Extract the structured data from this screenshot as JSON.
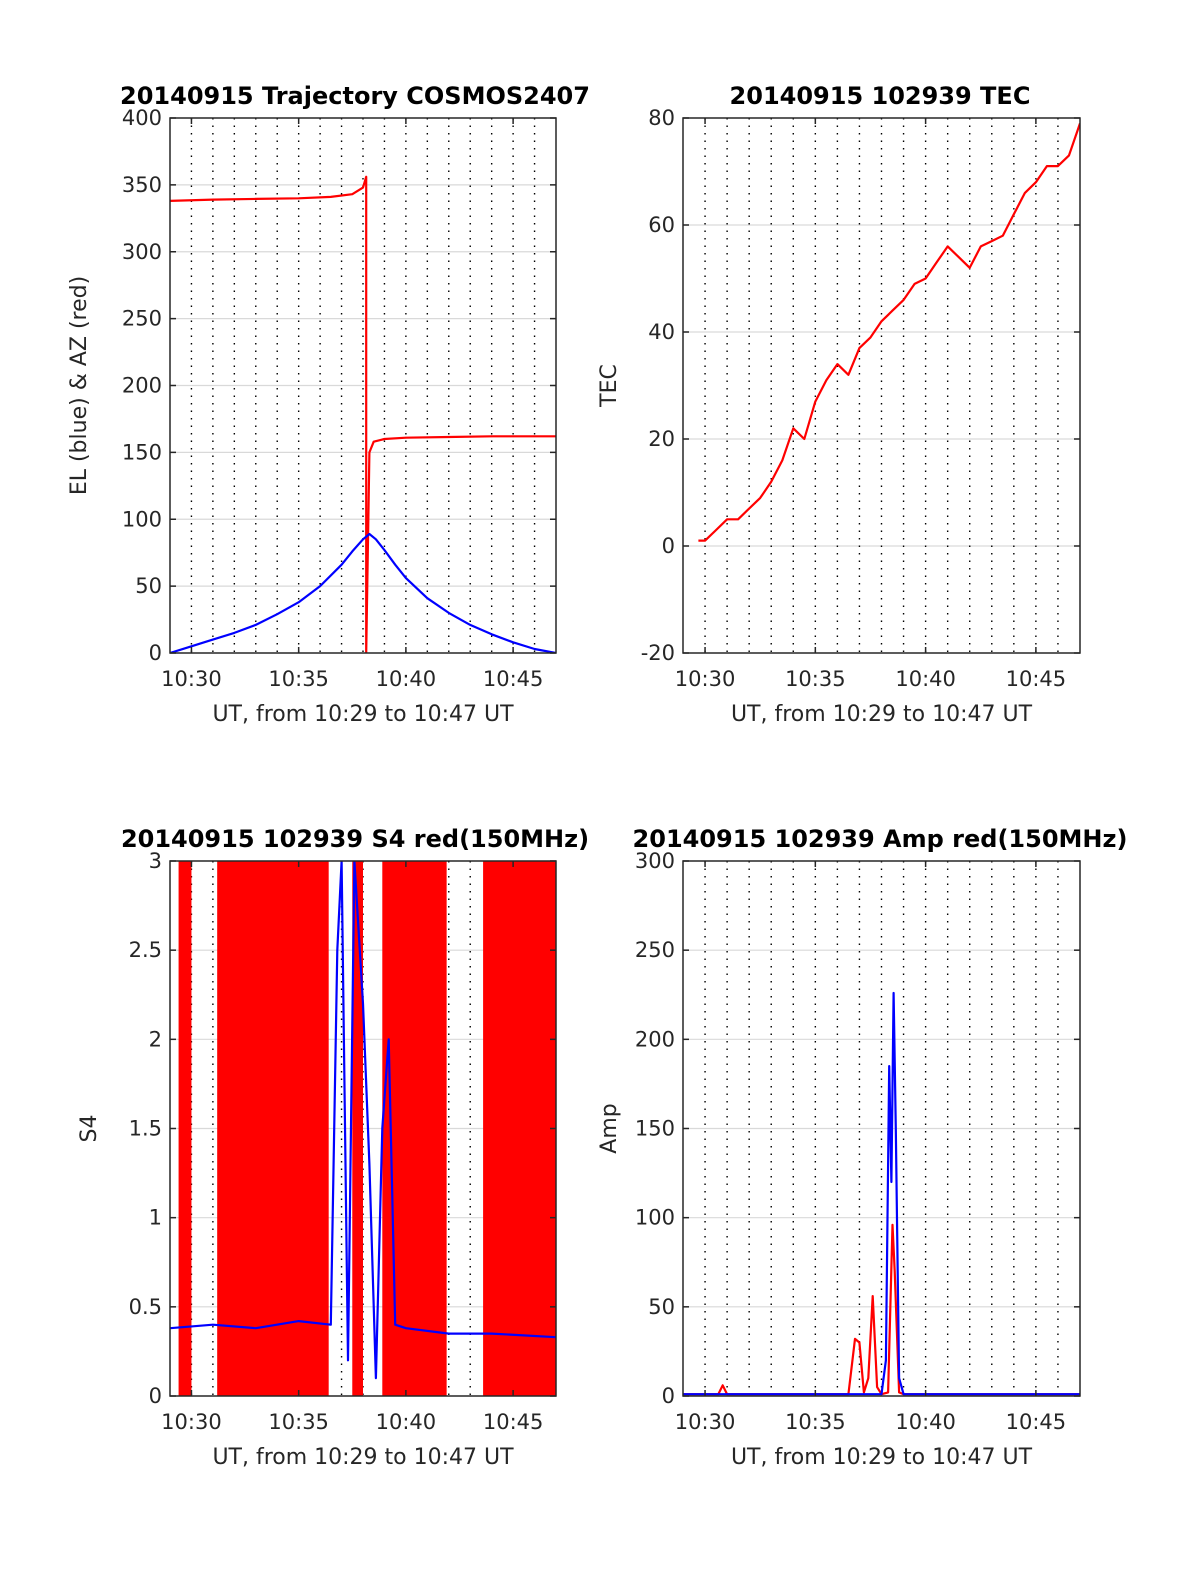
{
  "figure": {
    "colors": {
      "red": "#ff0000",
      "blue": "#0000ff",
      "axes": "#262626",
      "grid": "#d9d9d9",
      "vgrid": "#000000"
    }
  },
  "chart_data": [
    {
      "type": "line",
      "title": "20140915 Trajectory COSMOS2407",
      "xlabel": "UT, from 10:29 to 10:47 UT",
      "ylabel": "EL (blue) & AZ (red)",
      "xlim": [
        "10:29",
        "10:47"
      ],
      "ylim": [
        0,
        400
      ],
      "xticks": [
        "10:30",
        "10:35",
        "10:40",
        "10:45"
      ],
      "yticks": [
        "0",
        "50",
        "100",
        "150",
        "200",
        "250",
        "300",
        "350",
        "400"
      ],
      "grid": "on",
      "series": [
        {
          "color": "red",
          "x": [
            "10:29.0",
            "10:31.0",
            "10:33.0",
            "10:35.0",
            "10:36.5",
            "10:37.5",
            "10:38.0",
            "10:38.15",
            "10:38.15",
            "10:38.3",
            "10:38.5",
            "10:39.0",
            "10:40.0",
            "10:42.0",
            "10:44.0",
            "10:47.0"
          ],
          "values": [
            338,
            339,
            339.5,
            340,
            341,
            343,
            348,
            356,
            0,
            150,
            158,
            160,
            161,
            161.5,
            162,
            162
          ]
        },
        {
          "color": "blue",
          "x": [
            "10:29.0",
            "10:30.0",
            "10:31.0",
            "10:32.0",
            "10:33.0",
            "10:34.0",
            "10:35.0",
            "10:36.0",
            "10:37.0",
            "10:37.5",
            "10:38.0",
            "10:38.3",
            "10:38.6",
            "10:39.0",
            "10:39.5",
            "10:40.0",
            "10:41.0",
            "10:42.0",
            "10:43.0",
            "10:44.0",
            "10:45.0",
            "10:46.0",
            "10:47.0"
          ],
          "values": [
            0,
            5,
            10,
            15,
            21,
            29,
            38,
            50,
            66,
            76,
            85,
            89,
            85,
            77,
            66,
            56,
            41,
            30,
            21,
            14,
            8,
            3,
            0
          ]
        }
      ]
    },
    {
      "type": "line",
      "title": "20140915 102939 TEC",
      "xlabel": "UT, from 10:29 to 10:47 UT",
      "ylabel": "TEC",
      "xlim": [
        "10:29",
        "10:47"
      ],
      "ylim": [
        -20,
        80
      ],
      "xticks": [
        "10:30",
        "10:35",
        "10:40",
        "10:45"
      ],
      "yticks": [
        "-20",
        "0",
        "20",
        "40",
        "60",
        "80"
      ],
      "grid": "on",
      "series": [
        {
          "color": "red",
          "x": [
            "10:29.7",
            "10:30.0",
            "10:30.5",
            "10:31.0",
            "10:31.5",
            "10:32.0",
            "10:32.5",
            "10:33.0",
            "10:33.5",
            "10:34.0",
            "10:34.5",
            "10:35.0",
            "10:35.5",
            "10:36.0",
            "10:36.5",
            "10:37.0",
            "10:37.5",
            "10:38.0",
            "10:38.5",
            "10:39.0",
            "10:39.5",
            "10:40.0",
            "10:40.5",
            "10:41.0",
            "10:41.5",
            "10:42.0",
            "10:42.5",
            "10:43.0",
            "10:43.5",
            "10:44.0",
            "10:44.5",
            "10:45.0",
            "10:45.5",
            "10:46.0",
            "10:46.5",
            "10:47.0"
          ],
          "values": [
            1,
            1,
            3,
            5,
            5,
            7,
            9,
            12,
            16,
            22,
            20,
            27,
            31,
            34,
            32,
            37,
            39,
            42,
            44,
            46,
            49,
            50,
            53,
            56,
            54,
            52,
            56,
            57,
            58,
            62,
            66,
            68,
            71,
            71,
            73,
            79
          ]
        }
      ]
    },
    {
      "type": "line",
      "title": "20140915 102939 S4 red(150MHz)",
      "xlabel": "UT, from 10:29 to 10:47 UT",
      "ylabel": "S4",
      "xlim": [
        "10:29",
        "10:47"
      ],
      "ylim": [
        0,
        3
      ],
      "xticks": [
        "10:30",
        "10:35",
        "10:40",
        "10:45"
      ],
      "yticks": [
        "0",
        "0.5",
        "1",
        "1.5",
        "2",
        "2.5",
        "3"
      ],
      "grid": "on",
      "series": [
        {
          "color": "red",
          "band_x": [
            [
              "10:29.4",
              "10:30.0"
            ],
            [
              "10:31.2",
              "10:36.4"
            ],
            [
              "10:37.5",
              "10:38.0"
            ],
            [
              "10:38.9",
              "10:41.9"
            ],
            [
              "10:43.6",
              "10:47.0"
            ]
          ],
          "band_range": [
            0,
            3
          ]
        },
        {
          "color": "blue",
          "x": [
            "10:29.0",
            "10:31.0",
            "10:33.0",
            "10:35.0",
            "10:36.5",
            "10:36.8",
            "10:37.0",
            "10:37.3",
            "10:37.6",
            "10:38.0",
            "10:38.3",
            "10:38.6",
            "10:38.9",
            "10:39.2",
            "10:39.5",
            "10:40.0",
            "10:42.0",
            "10:44.0",
            "10:47.0"
          ],
          "values": [
            0.38,
            0.4,
            0.38,
            0.42,
            0.4,
            2.5,
            3,
            0.2,
            3,
            2.2,
            1.3,
            0.1,
            1.5,
            2,
            0.4,
            0.38,
            0.35,
            0.35,
            0.33
          ]
        }
      ]
    },
    {
      "type": "line",
      "title": "20140915 102939 Amp red(150MHz)",
      "xlabel": "UT, from 10:29 to 10:47 UT",
      "ylabel": "Amp",
      "xlim": [
        "10:29",
        "10:47"
      ],
      "ylim": [
        0,
        300
      ],
      "xticks": [
        "10:30",
        "10:35",
        "10:40",
        "10:45"
      ],
      "yticks": [
        "0",
        "50",
        "100",
        "150",
        "200",
        "250",
        "300"
      ],
      "grid": "on",
      "series": [
        {
          "color": "red",
          "x": [
            "10:29.0",
            "10:30.6",
            "10:30.8",
            "10:31.0",
            "10:36.5",
            "10:36.8",
            "10:37.0",
            "10:37.2",
            "10:37.4",
            "10:37.6",
            "10:37.8",
            "10:38.0",
            "10:38.3",
            "10:38.5",
            "10:38.6",
            "10:38.8",
            "10:39.0",
            "10:47.0"
          ],
          "values": [
            1,
            1,
            6,
            1,
            1,
            32,
            30,
            2,
            10,
            56,
            5,
            1,
            2,
            96,
            70,
            2,
            1,
            1
          ]
        },
        {
          "color": "blue",
          "x": [
            "10:29.0",
            "10:33.0",
            "10:36.0",
            "10:38.0",
            "10:38.2",
            "10:38.35",
            "10:38.45",
            "10:38.55",
            "10:38.65",
            "10:38.8",
            "10:39.0",
            "10:42.0",
            "10:47.0"
          ],
          "values": [
            1,
            1,
            1,
            1,
            20,
            185,
            120,
            226,
            150,
            10,
            1,
            1,
            1
          ]
        }
      ]
    }
  ]
}
